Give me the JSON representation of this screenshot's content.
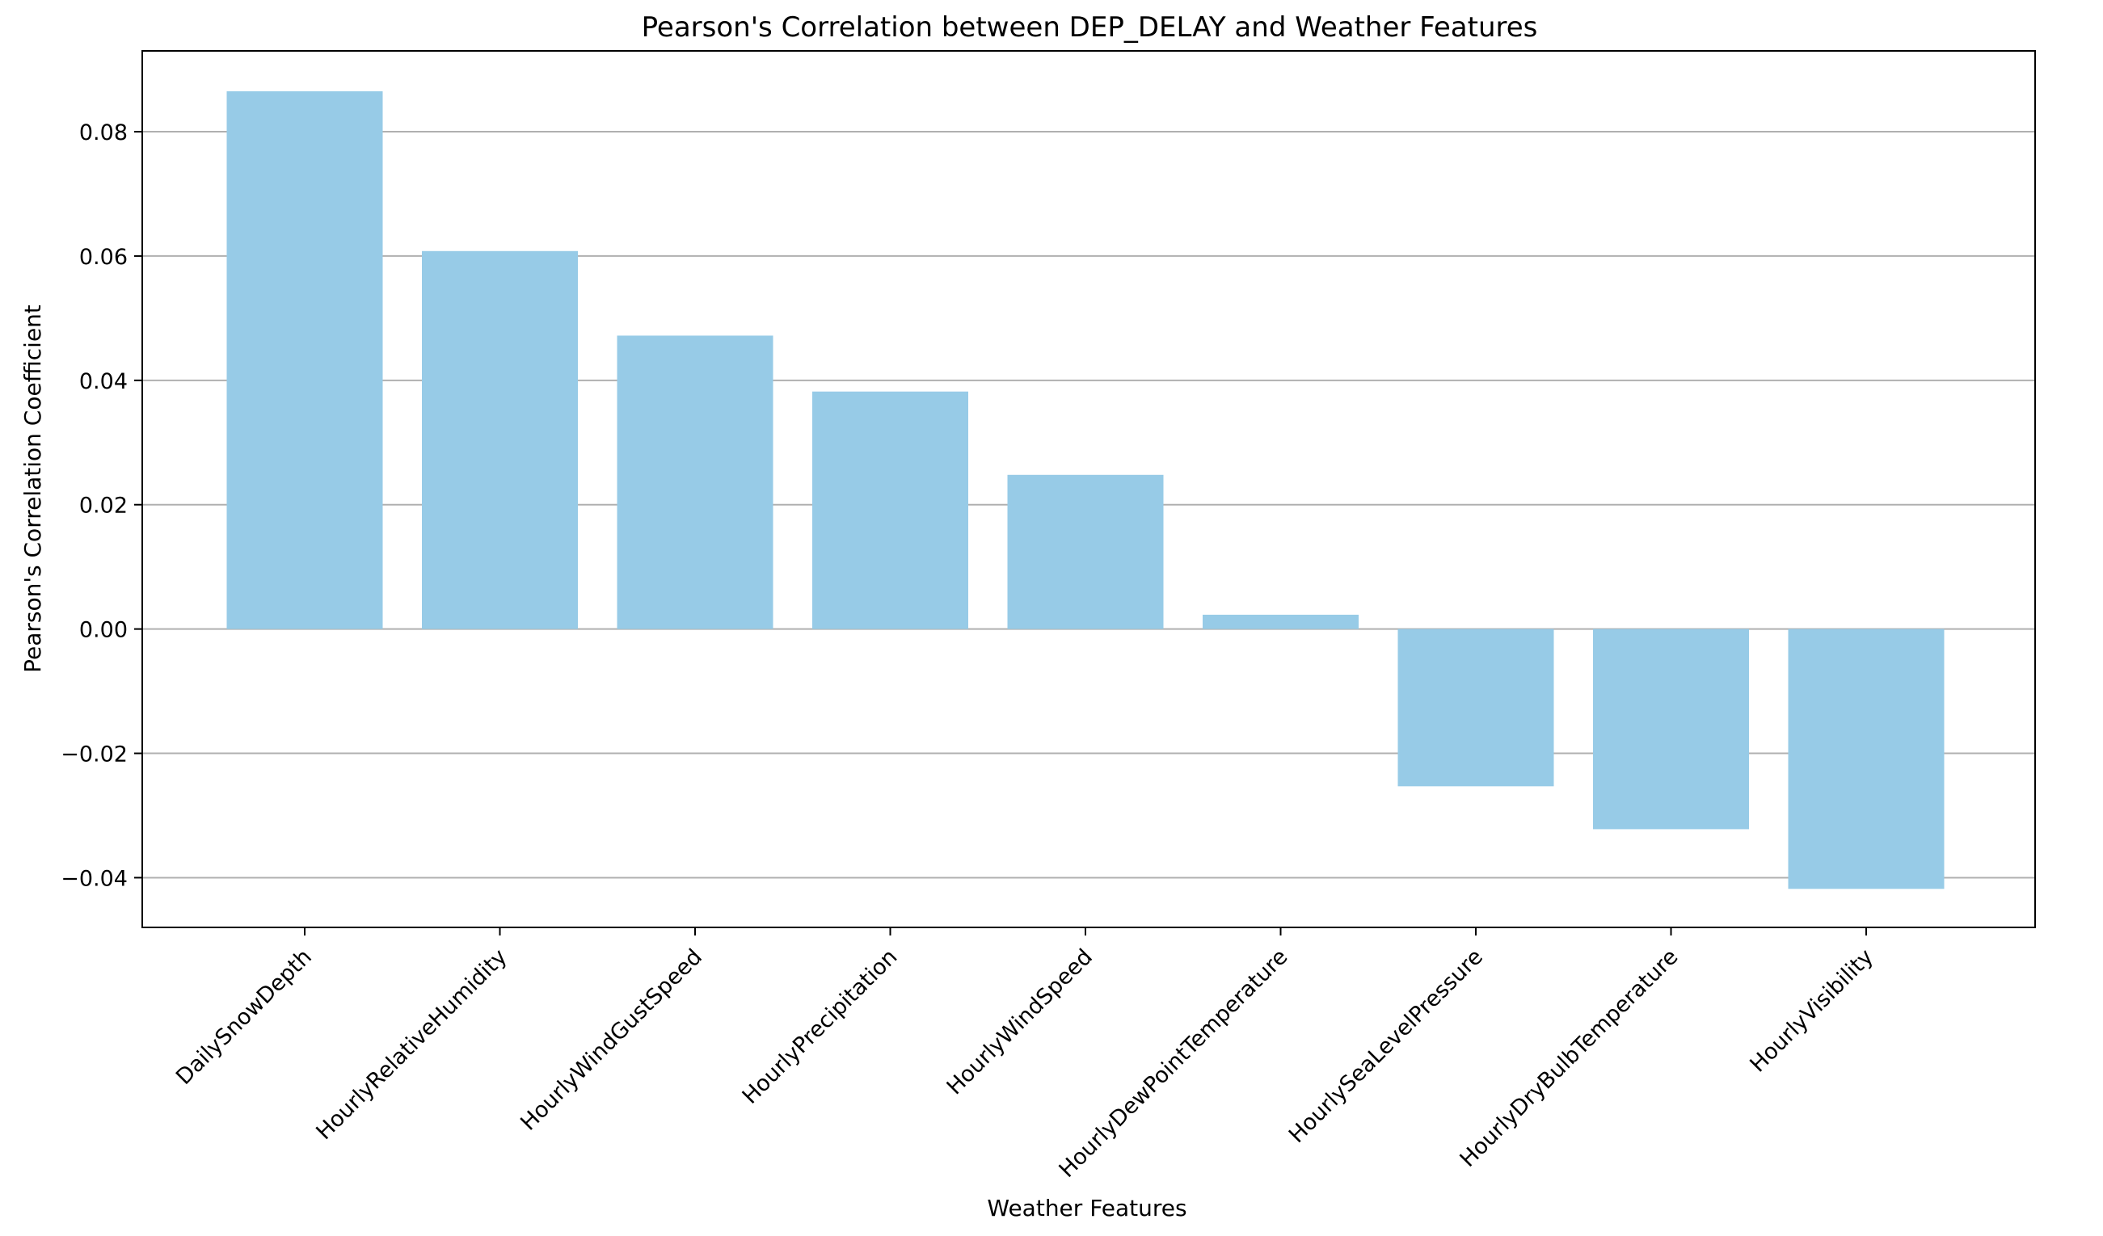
{
  "chart_data": {
    "type": "bar",
    "title": "Pearson's Correlation between DEP_DELAY and Weather Features",
    "xlabel": "Weather Features",
    "ylabel": "Pearson's Correlation Coefficient",
    "categories": [
      "DailySnowDepth",
      "HourlyRelativeHumidity",
      "HourlyWindGustSpeed",
      "HourlyPrecipitation",
      "HourlyWindSpeed",
      "HourlyDewPointTemperature",
      "HourlySeaLevelPressure",
      "HourlyDryBulbTemperature",
      "HourlyVisibility"
    ],
    "values": [
      0.0865,
      0.0608,
      0.0472,
      0.0382,
      0.0248,
      0.0023,
      -0.0253,
      -0.0322,
      -0.0418
    ],
    "ylim": [
      -0.048,
      0.093
    ],
    "yticks": [
      -0.04,
      -0.02,
      0.0,
      0.02,
      0.04,
      0.06,
      0.08
    ],
    "ytick_labels": [
      "−0.04",
      "−0.02",
      "0.00",
      "0.02",
      "0.04",
      "0.06",
      "0.08"
    ],
    "grid": "y-axis",
    "bar_color": "#97cbe7"
  }
}
